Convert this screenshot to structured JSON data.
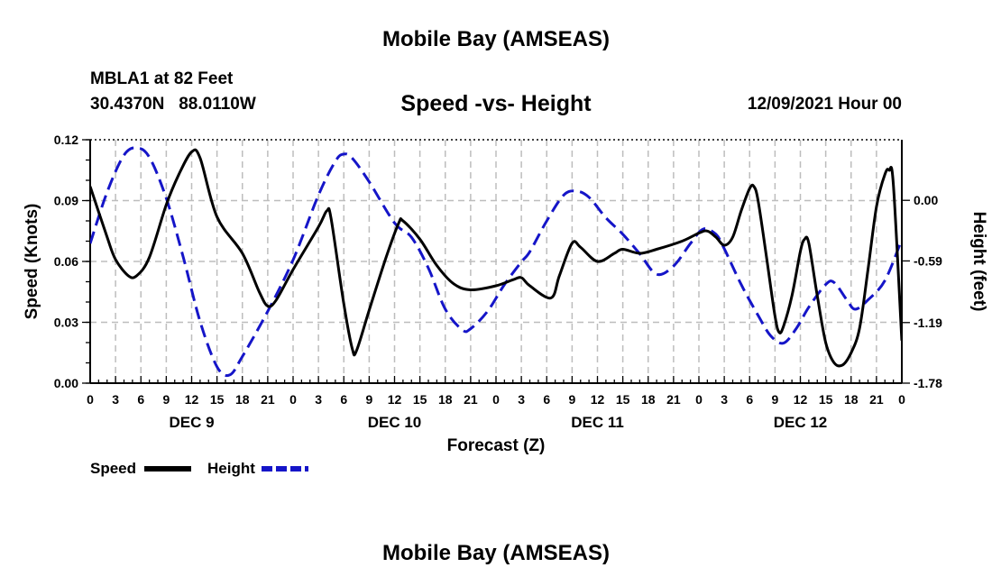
{
  "header": {
    "title": "Mobile Bay (AMSEAS)",
    "station": "MBLA1 at 82 Feet",
    "coords": "30.4370N   88.0110W",
    "subtitle": "Speed -vs- Height",
    "run_time": "12/09/2021 Hour 00"
  },
  "footer": {
    "title": "Mobile Bay (AMSEAS)"
  },
  "chart_data": {
    "type": "line",
    "title": "Speed -vs- Height",
    "xlabel": "Forecast (Z)",
    "ylabel_left": "Speed (Knots)",
    "ylabel_right": "Height (feet)",
    "xlim": [
      0,
      96
    ],
    "x_ticks": [
      0,
      3,
      6,
      9,
      12,
      15,
      18,
      21,
      24,
      27,
      30,
      33,
      36,
      39,
      42,
      45,
      48,
      51,
      54,
      57,
      60,
      63,
      66,
      69,
      72,
      75,
      78,
      81,
      84,
      87,
      90,
      93,
      96
    ],
    "x_tick_labels": [
      "0",
      "3",
      "6",
      "9",
      "12",
      "15",
      "18",
      "21",
      "0",
      "3",
      "6",
      "9",
      "12",
      "15",
      "18",
      "21",
      "0",
      "3",
      "6",
      "9",
      "12",
      "15",
      "18",
      "21",
      "0",
      "3",
      "6",
      "9",
      "12",
      "15",
      "18",
      "21",
      "0"
    ],
    "day_labels": [
      {
        "label": "DEC 9",
        "x": 12
      },
      {
        "label": "DEC 10",
        "x": 36
      },
      {
        "label": "DEC 11",
        "x": 60
      },
      {
        "label": "DEC 12",
        "x": 84
      }
    ],
    "left_axis": {
      "ylim": [
        0,
        0.12
      ],
      "ticks": [
        0,
        0.03,
        0.06,
        0.09,
        0.12
      ],
      "tick_labels": [
        "0.00",
        "0.03",
        "0.06",
        "0.09",
        "0.12"
      ]
    },
    "right_axis": {
      "ylim": [
        -1.78,
        0.59
      ],
      "ticks": [
        -1.78,
        -1.19,
        -0.59,
        0.0
      ],
      "tick_labels": [
        "-1.78",
        "-1.19",
        "-0.59",
        "0.00"
      ]
    },
    "grid": true,
    "legend": {
      "position": "bottom-left",
      "entries": [
        {
          "name": "Speed",
          "color": "#000000",
          "style": "solid"
        },
        {
          "name": "Height",
          "color": "#1515c8",
          "style": "dashed"
        }
      ]
    },
    "series": [
      {
        "name": "Speed",
        "axis": "left",
        "color": "#000000",
        "style": "solid",
        "points": [
          [
            0,
            0.097
          ],
          [
            2,
            0.072
          ],
          [
            3,
            0.061
          ],
          [
            4.5,
            0.053
          ],
          [
            5.5,
            0.053
          ],
          [
            7,
            0.062
          ],
          [
            9,
            0.088
          ],
          [
            10.5,
            0.103
          ],
          [
            12,
            0.114
          ],
          [
            13,
            0.111
          ],
          [
            15,
            0.082
          ],
          [
            18,
            0.064
          ],
          [
            20,
            0.045
          ],
          [
            21,
            0.038
          ],
          [
            22,
            0.041
          ],
          [
            24,
            0.056
          ],
          [
            27,
            0.077
          ],
          [
            28,
            0.085
          ],
          [
            28.5,
            0.081
          ],
          [
            30,
            0.039
          ],
          [
            31,
            0.017
          ],
          [
            31.5,
            0.016
          ],
          [
            33,
            0.036
          ],
          [
            35,
            0.062
          ],
          [
            36.5,
            0.079
          ],
          [
            37,
            0.08
          ],
          [
            39,
            0.071
          ],
          [
            41,
            0.058
          ],
          [
            43,
            0.049
          ],
          [
            45,
            0.046
          ],
          [
            48,
            0.048
          ],
          [
            50,
            0.051
          ],
          [
            51,
            0.052
          ],
          [
            52,
            0.048
          ],
          [
            54.5,
            0.042
          ],
          [
            55.5,
            0.053
          ],
          [
            57,
            0.069
          ],
          [
            58,
            0.067
          ],
          [
            60,
            0.06
          ],
          [
            62,
            0.064
          ],
          [
            63,
            0.066
          ],
          [
            65,
            0.064
          ],
          [
            67,
            0.066
          ],
          [
            70,
            0.07
          ],
          [
            72,
            0.074
          ],
          [
            73,
            0.075
          ],
          [
            74,
            0.072
          ],
          [
            75,
            0.068
          ],
          [
            76,
            0.072
          ],
          [
            77,
            0.085
          ],
          [
            78,
            0.096
          ],
          [
            78.5,
            0.097
          ],
          [
            79,
            0.09
          ],
          [
            80,
            0.062
          ],
          [
            81,
            0.033
          ],
          [
            81.5,
            0.025
          ],
          [
            82,
            0.028
          ],
          [
            83,
            0.043
          ],
          [
            84,
            0.065
          ],
          [
            84.5,
            0.071
          ],
          [
            85,
            0.069
          ],
          [
            86,
            0.043
          ],
          [
            87,
            0.02
          ],
          [
            88,
            0.01
          ],
          [
            89,
            0.009
          ],
          [
            90,
            0.015
          ],
          [
            91,
            0.027
          ],
          [
            92,
            0.056
          ],
          [
            93,
            0.087
          ],
          [
            94,
            0.103
          ],
          [
            94.5,
            0.105
          ],
          [
            95,
            0.098
          ],
          [
            96,
            0.021
          ]
        ]
      },
      {
        "name": "Height",
        "axis": "right",
        "color": "#1515c8",
        "style": "dashed",
        "points": [
          [
            0,
            -0.42
          ],
          [
            2,
            0.08
          ],
          [
            4,
            0.44
          ],
          [
            5.5,
            0.51
          ],
          [
            7,
            0.42
          ],
          [
            9,
            0.02
          ],
          [
            11,
            -0.55
          ],
          [
            13,
            -1.18
          ],
          [
            15,
            -1.62
          ],
          [
            16.5,
            -1.7
          ],
          [
            18,
            -1.52
          ],
          [
            21,
            -1.08
          ],
          [
            24,
            -0.58
          ],
          [
            27,
            0.05
          ],
          [
            29,
            0.38
          ],
          [
            30,
            0.45
          ],
          [
            31,
            0.41
          ],
          [
            33,
            0.18
          ],
          [
            36,
            -0.22
          ],
          [
            38,
            -0.36
          ],
          [
            40,
            -0.66
          ],
          [
            42,
            -1.06
          ],
          [
            44,
            -1.26
          ],
          [
            45,
            -1.25
          ],
          [
            47,
            -1.08
          ],
          [
            49,
            -0.82
          ],
          [
            51,
            -0.6
          ],
          [
            52,
            -0.5
          ],
          [
            54,
            -0.2
          ],
          [
            56,
            0.05
          ],
          [
            57.5,
            0.09
          ],
          [
            59,
            0.03
          ],
          [
            61,
            -0.17
          ],
          [
            63,
            -0.33
          ],
          [
            65,
            -0.52
          ],
          [
            67,
            -0.72
          ],
          [
            69,
            -0.64
          ],
          [
            71,
            -0.42
          ],
          [
            72.5,
            -0.28
          ],
          [
            74,
            -0.33
          ],
          [
            75,
            -0.47
          ],
          [
            77,
            -0.82
          ],
          [
            79,
            -1.12
          ],
          [
            80.5,
            -1.32
          ],
          [
            82,
            -1.39
          ],
          [
            83.5,
            -1.25
          ],
          [
            85,
            -1.04
          ],
          [
            87,
            -0.82
          ],
          [
            88,
            -0.8
          ],
          [
            89.5,
            -0.97
          ],
          [
            90.5,
            -1.06
          ],
          [
            92,
            -0.97
          ],
          [
            94,
            -0.78
          ],
          [
            96,
            -0.38
          ]
        ]
      }
    ]
  }
}
